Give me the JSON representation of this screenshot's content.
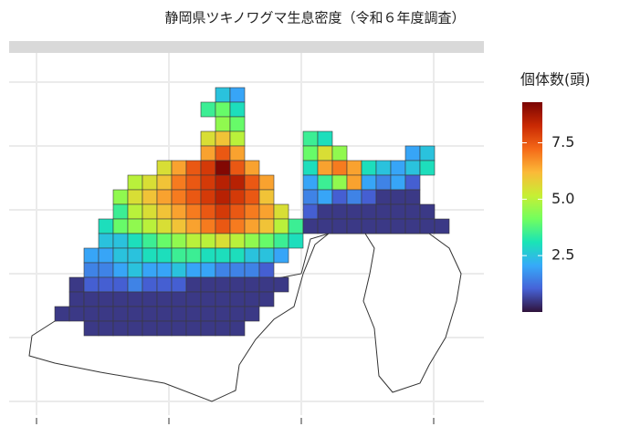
{
  "title": "静岡県ツキノワグマ生息密度（令和６年度調査）",
  "legend": {
    "title": "個体数(頭)",
    "lim": [
      0,
      9.3
    ],
    "ticks": [
      {
        "value": 2.5,
        "label": "2.5"
      },
      {
        "value": 5,
        "label": "5.0"
      },
      {
        "value": 7.5,
        "label": "7.5"
      }
    ],
    "colors": [
      "#30123b",
      "#4662d7",
      "#36aaf9",
      "#1ae4b6",
      "#72fe5e",
      "#c7ef34",
      "#fbb938",
      "#f56918",
      "#c92903",
      "#7a0403"
    ]
  },
  "cells": {
    "rows": [
      [
        null,
        null,
        null,
        null,
        null,
        null,
        null,
        null,
        null,
        null,
        null,
        2.5,
        2.0,
        null,
        null,
        null,
        null,
        null,
        null,
        null,
        null,
        null,
        null,
        null,
        null,
        null,
        null
      ],
      [
        null,
        null,
        null,
        null,
        null,
        null,
        null,
        null,
        null,
        null,
        3.5,
        4.0,
        3.0,
        null,
        null,
        null,
        null,
        null,
        null,
        null,
        null,
        null,
        null,
        null,
        null,
        null,
        null
      ],
      [
        null,
        null,
        null,
        null,
        null,
        null,
        null,
        null,
        null,
        null,
        null,
        4.5,
        4.0,
        null,
        null,
        null,
        null,
        null,
        null,
        null,
        null,
        null,
        null,
        null,
        null,
        null,
        null
      ],
      [
        null,
        null,
        null,
        null,
        null,
        null,
        null,
        null,
        null,
        null,
        5.5,
        6,
        5,
        null,
        null,
        null,
        null,
        3.5,
        3,
        null,
        null,
        null,
        null,
        null,
        null,
        null,
        null
      ],
      [
        null,
        null,
        null,
        null,
        null,
        null,
        null,
        null,
        null,
        null,
        6.5,
        7.5,
        6.5,
        null,
        null,
        null,
        null,
        4,
        5.5,
        4.5,
        null,
        null,
        null,
        null,
        2,
        2.5,
        null
      ],
      [
        null,
        null,
        null,
        null,
        null,
        null,
        null,
        5.5,
        6.5,
        7.5,
        8,
        9.2,
        7.5,
        6.5,
        null,
        null,
        null,
        3,
        6.5,
        7,
        6.5,
        3,
        2.5,
        2,
        2.5,
        3,
        null
      ],
      [
        null,
        null,
        null,
        null,
        null,
        5,
        5.5,
        6,
        7,
        7.5,
        8,
        8.5,
        8.5,
        7.5,
        6.5,
        null,
        null,
        2,
        3.5,
        4.5,
        6.5,
        2,
        1.5,
        2,
        1,
        null,
        null
      ],
      [
        null,
        null,
        null,
        null,
        4.5,
        5.5,
        6,
        6.5,
        7,
        7.5,
        8,
        8.5,
        8,
        7.5,
        6,
        null,
        null,
        1.5,
        2,
        1,
        1.5,
        1,
        0.5,
        0.5,
        0.5,
        null,
        null
      ],
      [
        null,
        null,
        null,
        null,
        3.5,
        5,
        5.5,
        6,
        6.5,
        7,
        7.5,
        8,
        7.5,
        7,
        6.5,
        5.5,
        null,
        1,
        0.5,
        0.5,
        0.5,
        0.5,
        0.5,
        0.5,
        0.5,
        0.5,
        null
      ],
      [
        null,
        null,
        null,
        3,
        4,
        4.5,
        5,
        5.5,
        6,
        6.5,
        7,
        7.5,
        7,
        6.5,
        6,
        5,
        3.5,
        0.5,
        0.5,
        0.5,
        0.5,
        0.5,
        0.5,
        0.5,
        0.5,
        0.5,
        0.5
      ],
      [
        null,
        null,
        null,
        2.5,
        2.5,
        3,
        3.5,
        4,
        4.5,
        5,
        5,
        5.5,
        5,
        4.5,
        4,
        3.5,
        3,
        null,
        null,
        null,
        null,
        null,
        null,
        null,
        null,
        null,
        null
      ],
      [
        null,
        null,
        2,
        2,
        2.5,
        2.5,
        3,
        3,
        3.5,
        3.5,
        3,
        3,
        3,
        2.5,
        2.5,
        2,
        null,
        null,
        null,
        null,
        null,
        null,
        null,
        null,
        null,
        null,
        null
      ],
      [
        null,
        null,
        1.5,
        1.5,
        2,
        2.5,
        2,
        2,
        2.5,
        2,
        2,
        1.5,
        1.5,
        1.5,
        1,
        null,
        null,
        null,
        null,
        null,
        null,
        null,
        null,
        null,
        null,
        null,
        null
      ],
      [
        null,
        0.5,
        1,
        1,
        1,
        1.5,
        1,
        1,
        1,
        0.5,
        0.5,
        0.5,
        0.5,
        0.5,
        0.5,
        0.5,
        null,
        null,
        null,
        null,
        null,
        null,
        null,
        null,
        null,
        null,
        null
      ],
      [
        null,
        0.5,
        0.5,
        0.5,
        0.5,
        0.5,
        0.5,
        0.5,
        0.5,
        0.5,
        0.5,
        0.5,
        0.5,
        0.5,
        0.5,
        null,
        null,
        null,
        null,
        null,
        null,
        null,
        null,
        null,
        null,
        null,
        null
      ],
      [
        0.5,
        0.5,
        0.5,
        0.5,
        0.5,
        0.5,
        0.5,
        0.5,
        0.5,
        0.5,
        0.5,
        0.5,
        0.5,
        0.5,
        null,
        null,
        null,
        null,
        null,
        null,
        null,
        null,
        null,
        null,
        null,
        null,
        null
      ],
      [
        null,
        null,
        0.5,
        0.5,
        0.5,
        0.5,
        0.5,
        0.5,
        0.5,
        0.5,
        0.5,
        0.5,
        0.5,
        null,
        null,
        null,
        null,
        null,
        null,
        null,
        null,
        null,
        null,
        null,
        null,
        null,
        null
      ]
    ]
  }
}
